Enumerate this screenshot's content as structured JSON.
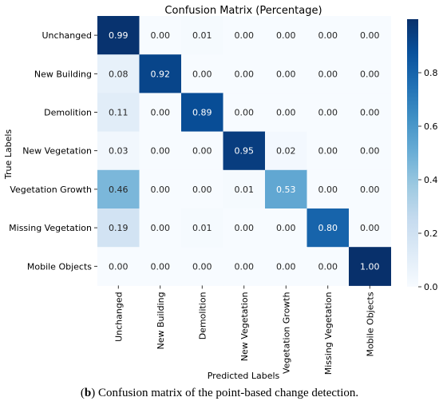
{
  "chart_data": {
    "type": "heatmap",
    "title": "Confusion Matrix (Percentage)",
    "xlabel": "Predicted Labels",
    "ylabel": "True Labels",
    "row_labels": [
      "Unchanged",
      "New Building",
      "Demolition",
      "New Vegetation",
      "Vegetation Growth",
      "Missing Vegetation",
      "Mobile Objects"
    ],
    "col_labels": [
      "Unchanged",
      "New Building",
      "Demolition",
      "New Vegetation",
      "Vegetation Growth",
      "Missing Vegetation",
      "Mobile Objects"
    ],
    "values": [
      [
        0.99,
        0.0,
        0.01,
        0.0,
        0.0,
        0.0,
        0.0
      ],
      [
        0.08,
        0.92,
        0.0,
        0.0,
        0.0,
        0.0,
        0.0
      ],
      [
        0.11,
        0.0,
        0.89,
        0.0,
        0.0,
        0.0,
        0.0
      ],
      [
        0.03,
        0.0,
        0.0,
        0.95,
        0.02,
        0.0,
        0.0
      ],
      [
        0.46,
        0.0,
        0.0,
        0.01,
        0.53,
        0.0,
        0.0
      ],
      [
        0.19,
        0.0,
        0.01,
        0.0,
        0.0,
        0.8,
        0.0
      ],
      [
        0.0,
        0.0,
        0.0,
        0.0,
        0.0,
        0.0,
        1.0
      ]
    ],
    "colorbar": {
      "colormap": "Blues",
      "range": [
        0.0,
        1.0
      ],
      "ticks": [
        0.0,
        0.2,
        0.4,
        0.6,
        0.8
      ],
      "tick_labels": [
        "0.0",
        "0.2",
        "0.4",
        "0.6",
        "0.8"
      ]
    },
    "grid": false
  },
  "caption": {
    "label": "b",
    "text": " Confusion matrix of the point-based change detection."
  }
}
